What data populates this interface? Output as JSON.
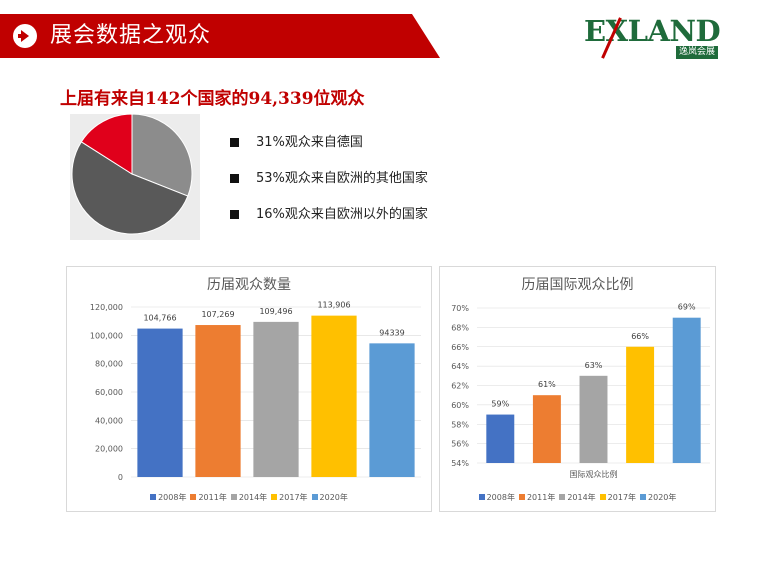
{
  "header": {
    "title": "展会数据之观众",
    "brand_color": "#c00000"
  },
  "logo": {
    "word_prefix": "E",
    "word_x": "X",
    "word_suffix": "LAND",
    "subtitle": "逸岚会展"
  },
  "headline": "上届有来自142个国家的94,339位观众",
  "pie": {
    "slices": [
      {
        "label": "31%观众来自德国",
        "percent": 31,
        "color": "#8c8c8c"
      },
      {
        "label": "53%观众来自欧洲的其他国家",
        "percent": 53,
        "color": "#595959"
      },
      {
        "label": "16%观众来自欧洲以外的国家",
        "percent": 16,
        "color": "#e0001b"
      }
    ]
  },
  "chart_data": [
    {
      "type": "bar",
      "title": "历届观众数量",
      "categories": [
        "2008年",
        "2011年",
        "2014年",
        "2017年",
        "2020年"
      ],
      "values": [
        104766,
        107269,
        109496,
        113906,
        94339
      ],
      "data_labels": [
        "104,766",
        "107,269",
        "109,496",
        "113,906",
        "94339"
      ],
      "colors": [
        "#4472c4",
        "#ed7d31",
        "#a5a5a5",
        "#ffc000",
        "#5b9bd5"
      ],
      "ylim": [
        0,
        120000
      ],
      "yticks": [
        "0",
        "20,000",
        "40,000",
        "60,000",
        "80,000",
        "100,000",
        "120,000"
      ],
      "xlabel": "",
      "ylabel": "",
      "grid": true,
      "legend": "bottom"
    },
    {
      "type": "bar",
      "title": "历届国际观众比例",
      "categories": [
        "2008年",
        "2011年",
        "2014年",
        "2017年",
        "2020年"
      ],
      "values": [
        59,
        61,
        63,
        66,
        69
      ],
      "data_labels": [
        "59%",
        "61%",
        "63%",
        "66%",
        "69%"
      ],
      "colors": [
        "#4472c4",
        "#ed7d31",
        "#a5a5a5",
        "#ffc000",
        "#5b9bd5"
      ],
      "ylim": [
        54,
        70
      ],
      "yticks": [
        "54%",
        "56%",
        "58%",
        "60%",
        "62%",
        "64%",
        "66%",
        "68%",
        "70%"
      ],
      "xlabel": "国际观众比例",
      "ylabel": "",
      "grid": true,
      "legend": "bottom"
    }
  ]
}
